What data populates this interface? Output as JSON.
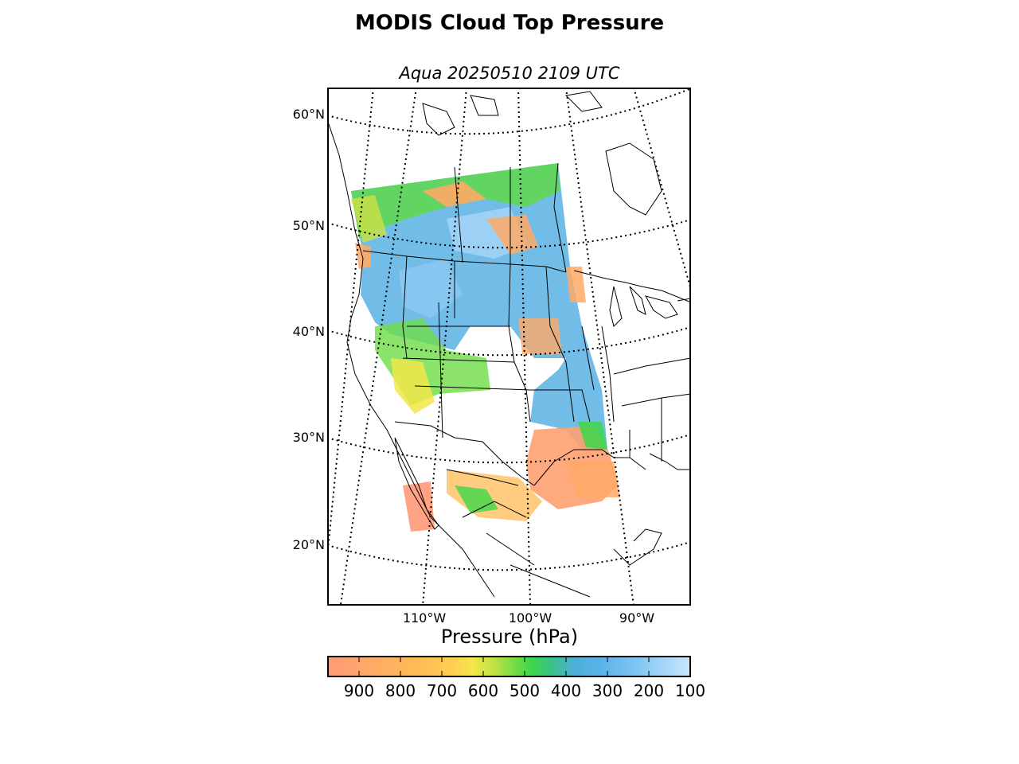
{
  "title": "MODIS Cloud Top Pressure",
  "subtitle": "Aqua 20250510 2109 UTC",
  "map": {
    "projection": "lambert-conformal",
    "lat_labels": [
      "60°N",
      "50°N",
      "40°N",
      "30°N",
      "20°N"
    ],
    "lon_labels": [
      "110°W",
      "100°W",
      "90°W"
    ],
    "boundaries": [
      "coastlines",
      "countries",
      "us-states",
      "canadian-provinces",
      "mexican-states"
    ],
    "graticule_style": "dotted"
  },
  "colorbar": {
    "label": "Pressure (hPa)",
    "ticks": [
      "900",
      "800",
      "700",
      "600",
      "500",
      "400",
      "300",
      "200",
      "100"
    ],
    "range": [
      1000,
      100
    ],
    "colors": [
      "#ff9977",
      "#ffaa66",
      "#ffbb55",
      "#ffd050",
      "#f2e84a",
      "#bfe044",
      "#6fdc46",
      "#3cd84a",
      "#3cc08a",
      "#4cb0d8",
      "#5ab2ea",
      "#80c4f2",
      "#a8d6f8",
      "#c8e6ff"
    ]
  },
  "chart_data": {
    "type": "heatmap",
    "title": "MODIS Cloud Top Pressure",
    "subtitle": "Aqua 20250510 2109 UTC",
    "variable": "cloud_top_pressure",
    "units": "hPa",
    "colorbar_label": "Pressure (hPa)",
    "colorbar_ticks": [
      900,
      800,
      700,
      600,
      500,
      400,
      300,
      200,
      100
    ],
    "colorbar_range": [
      1000,
      100
    ],
    "lat_ticks": [
      60,
      50,
      40,
      30,
      20
    ],
    "lon_ticks": [
      -110,
      -100,
      -90
    ],
    "grid": true
  }
}
